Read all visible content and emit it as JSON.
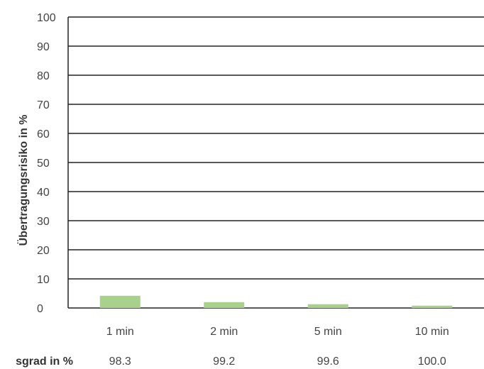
{
  "chart_data": {
    "type": "bar",
    "ylabel": "Übertragungsrisiko in %",
    "ylim": [
      0,
      100
    ],
    "yticks": [
      0,
      10,
      20,
      30,
      40,
      50,
      60,
      70,
      80,
      90,
      100
    ],
    "grid": true,
    "categories": [
      "1 min",
      "2 min",
      "5 min",
      "10 min"
    ],
    "values": [
      4.2,
      2.0,
      1.3,
      0.8
    ],
    "bar_color": "#a9d18e",
    "secondary_row": {
      "label": "sgrad in  %",
      "values": [
        "98.3",
        "99.2",
        "99.6",
        "100.0"
      ]
    }
  }
}
